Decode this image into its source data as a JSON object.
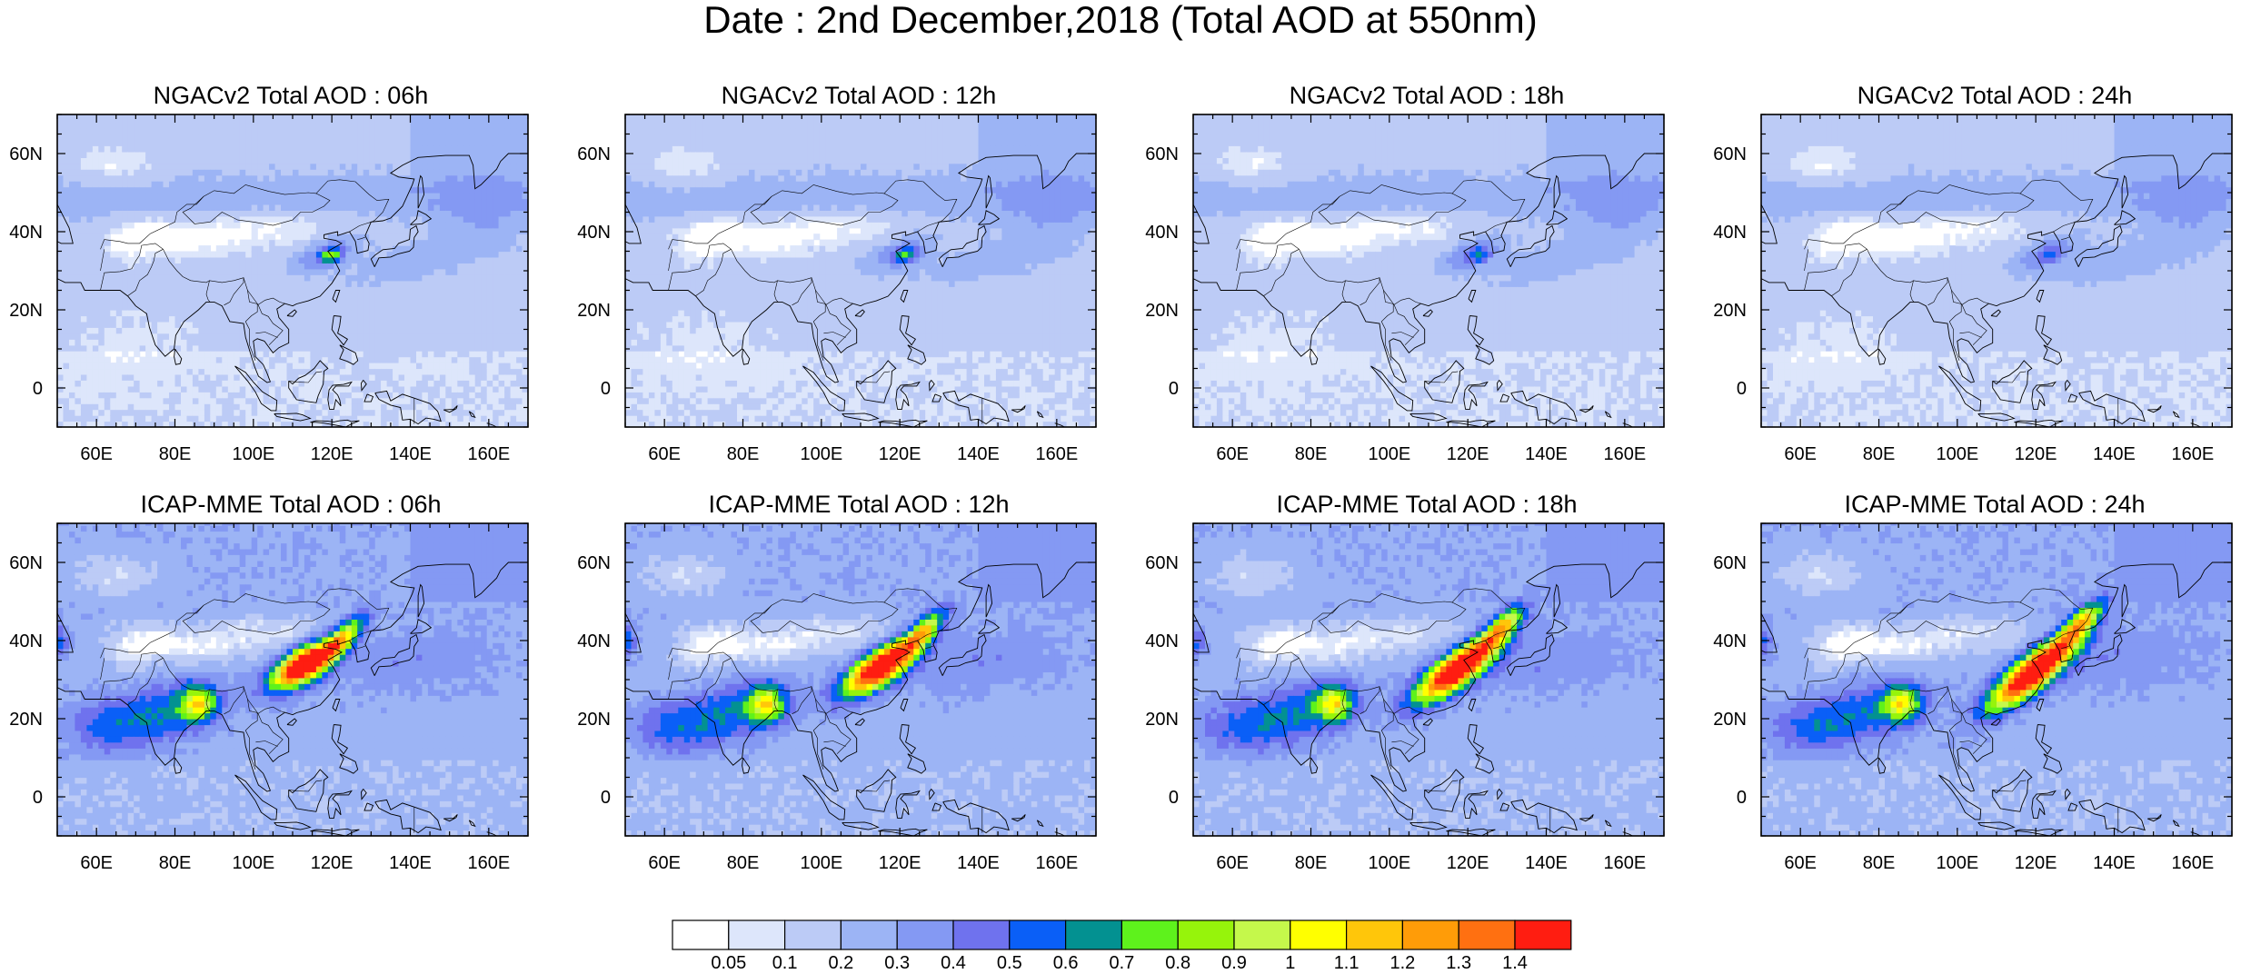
{
  "title": "Date : 2nd December,2018 (Total AOD at 550nm)",
  "panels": [
    {
      "label": "NGACv2 Total AOD : 06h",
      "model": "NGACv2",
      "hour": 6
    },
    {
      "label": "NGACv2 Total AOD : 12h",
      "model": "NGACv2",
      "hour": 12
    },
    {
      "label": "NGACv2 Total AOD : 18h",
      "model": "NGACv2",
      "hour": 18
    },
    {
      "label": "NGACv2 Total AOD : 24h",
      "model": "NGACv2",
      "hour": 24
    },
    {
      "label": "ICAP-MME Total AOD : 06h",
      "model": "ICAP-MME",
      "hour": 6
    },
    {
      "label": "ICAP-MME Total AOD : 12h",
      "model": "ICAP-MME",
      "hour": 12
    },
    {
      "label": "ICAP-MME Total AOD : 18h",
      "model": "ICAP-MME",
      "hour": 18
    },
    {
      "label": "ICAP-MME Total AOD : 24h",
      "model": "ICAP-MME",
      "hour": 24
    }
  ],
  "axes": {
    "x_ticks": [
      "60E",
      "80E",
      "100E",
      "120E",
      "140E",
      "160E"
    ],
    "x_values": [
      60,
      80,
      100,
      120,
      140,
      160
    ],
    "x_range": [
      50,
      170
    ],
    "y_ticks": [
      "60N",
      "40N",
      "20N",
      "0"
    ],
    "y_values": [
      60,
      40,
      20,
      0
    ],
    "y_range": [
      -10,
      70
    ]
  },
  "colorbar": {
    "labels": [
      "0.05",
      "0.1",
      "0.2",
      "0.3",
      "0.4",
      "0.5",
      "0.6",
      "0.7",
      "0.8",
      "0.9",
      "1",
      "1.1",
      "1.2",
      "1.3",
      "1.4"
    ],
    "colors": [
      "#ffffff",
      "#dde6fb",
      "#bccbf6",
      "#9cb4f5",
      "#8499f3",
      "#6f72ee",
      "#0a5ff7",
      "#039191",
      "#5ef21c",
      "#96f40b",
      "#c5f84b",
      "#ffff00",
      "#ffc60a",
      "#ff9c08",
      "#ff7011",
      "#ff1d11"
    ]
  }
}
